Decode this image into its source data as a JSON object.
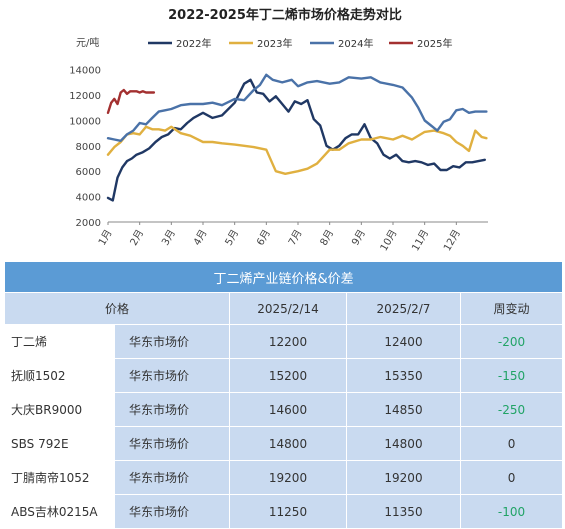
{
  "chart_data": {
    "type": "line",
    "title": "2022-2025年丁二烯市场价格走势对比",
    "unit_label": "元/吨",
    "y_ticks": [
      "14000",
      "12000",
      "10000",
      "8000",
      "6000",
      "4000",
      "2000"
    ],
    "ylim": [
      2000,
      15000
    ],
    "x_ticks": [
      "1月",
      "2月",
      "3月",
      "4月",
      "5月",
      "6月",
      "7月",
      "8月",
      "9月",
      "10月",
      "11月",
      "12月"
    ],
    "xlim": [
      1,
      13
    ],
    "series": [
      {
        "name": "2022年",
        "color": "#203864",
        "x": [
          1.0,
          1.15,
          1.3,
          1.45,
          1.6,
          1.75,
          1.9,
          2.1,
          2.3,
          2.5,
          2.7,
          2.9,
          3.1,
          3.3,
          3.5,
          3.7,
          4.0,
          4.3,
          4.6,
          5.0,
          5.3,
          5.5,
          5.7,
          5.9,
          6.1,
          6.3,
          6.5,
          6.7,
          6.9,
          7.1,
          7.3,
          7.5,
          7.7,
          7.9,
          8.1,
          8.3,
          8.5,
          8.7,
          8.9,
          9.1,
          9.3,
          9.5,
          9.7,
          9.9,
          10.1,
          10.3,
          10.5,
          10.7,
          10.9,
          11.1,
          11.3,
          11.5,
          11.7,
          11.9,
          12.1,
          12.3,
          12.5,
          12.7,
          12.9
        ],
        "values": [
          3900,
          3700,
          5500,
          6300,
          6800,
          7000,
          7300,
          7500,
          7800,
          8300,
          8700,
          8900,
          9400,
          9300,
          9800,
          10200,
          10600,
          10200,
          10400,
          11400,
          12900,
          13200,
          12200,
          12100,
          11500,
          11900,
          11300,
          10700,
          11500,
          11300,
          11600,
          10100,
          9600,
          8000,
          7700,
          8000,
          8600,
          8900,
          8900,
          9700,
          8600,
          8200,
          7300,
          7000,
          7300,
          6800,
          6700,
          6800,
          6700,
          6500,
          6600,
          6100,
          6100,
          6400,
          6300,
          6700,
          6700,
          6800,
          6900
        ]
      },
      {
        "name": "2023年",
        "color": "#e0b040",
        "x": [
          1.0,
          1.2,
          1.4,
          1.6,
          1.8,
          2.0,
          2.2,
          2.4,
          2.6,
          2.8,
          3.0,
          3.3,
          3.6,
          4.0,
          4.3,
          4.6,
          5.0,
          5.3,
          5.6,
          6.0,
          6.3,
          6.6,
          7.0,
          7.3,
          7.6,
          8.0,
          8.3,
          8.6,
          9.0,
          9.3,
          9.6,
          10.0,
          10.3,
          10.6,
          11.0,
          11.3,
          11.6,
          11.8,
          12.0,
          12.2,
          12.4,
          12.6,
          12.8,
          12.95
        ],
        "values": [
          7300,
          7900,
          8300,
          8900,
          9000,
          8900,
          9500,
          9300,
          9300,
          9200,
          9500,
          9000,
          8800,
          8300,
          8300,
          8200,
          8100,
          8000,
          7900,
          7700,
          6000,
          5800,
          6000,
          6200,
          6600,
          7700,
          7700,
          8200,
          8500,
          8500,
          8700,
          8500,
          8800,
          8500,
          9100,
          9200,
          9000,
          8800,
          8300,
          8000,
          7600,
          9200,
          8700,
          8600
        ]
      },
      {
        "name": "2024年",
        "color": "#4a72a8",
        "x": [
          1.0,
          1.2,
          1.4,
          1.6,
          1.8,
          2.0,
          2.2,
          2.4,
          2.6,
          2.8,
          3.0,
          3.3,
          3.6,
          4.0,
          4.3,
          4.6,
          5.0,
          5.3,
          5.6,
          5.8,
          6.0,
          6.2,
          6.5,
          6.8,
          7.0,
          7.3,
          7.6,
          8.0,
          8.3,
          8.6,
          9.0,
          9.3,
          9.6,
          10.0,
          10.3,
          10.6,
          10.8,
          11.0,
          11.2,
          11.4,
          11.6,
          11.8,
          12.0,
          12.2,
          12.4,
          12.6,
          12.8,
          12.95
        ],
        "values": [
          8600,
          8500,
          8400,
          8900,
          9200,
          9800,
          9700,
          10200,
          10700,
          10800,
          10900,
          11200,
          11300,
          11300,
          11400,
          11200,
          11700,
          11600,
          12400,
          12800,
          13600,
          13200,
          13000,
          13200,
          12700,
          13000,
          13100,
          12900,
          13000,
          13400,
          13300,
          13400,
          13000,
          12800,
          12600,
          11800,
          11000,
          10000,
          9600,
          9200,
          9900,
          10100,
          10800,
          10900,
          10600,
          10700,
          10700,
          10700
        ]
      },
      {
        "name": "2025年",
        "color": "#a33030",
        "x": [
          1.0,
          1.1,
          1.2,
          1.3,
          1.4,
          1.5,
          1.6,
          1.7,
          1.8,
          1.9,
          2.0,
          2.1,
          2.2,
          2.3,
          2.45
        ],
        "values": [
          10600,
          11400,
          11700,
          11300,
          12200,
          12400,
          12100,
          12300,
          12300,
          12300,
          12200,
          12300,
          12200,
          12200,
          12200
        ]
      }
    ],
    "grid": false,
    "legend_position": "top"
  },
  "table": {
    "title": "丁二烯产业链价格&价差",
    "headers": {
      "price": "价格",
      "date1": "2025/2/14",
      "date2": "2025/2/7",
      "change": "周变动"
    },
    "rows": [
      {
        "name": "丁二烯",
        "market": "华东市场价",
        "v1": "12200",
        "v2": "12400",
        "change": "-200",
        "change_color": "#21a366"
      },
      {
        "name": "抚顺1502",
        "market": "华东市场价",
        "v1": "15200",
        "v2": "15350",
        "change": "-150",
        "change_color": "#21a366"
      },
      {
        "name": "大庆BR9000",
        "market": "华东市场价",
        "v1": "14600",
        "v2": "14850",
        "change": "-250",
        "change_color": "#21a366"
      },
      {
        "name": "SBS 792E",
        "market": "华东市场价",
        "v1": "14800",
        "v2": "14800",
        "change": "0",
        "change_color": "#333333"
      },
      {
        "name": "丁腈南帝1052",
        "market": "华东市场价",
        "v1": "19200",
        "v2": "19200",
        "change": "0",
        "change_color": "#333333"
      },
      {
        "name": "ABS吉林0215A",
        "market": "华东市场价",
        "v1": "11250",
        "v2": "11350",
        "change": "-100",
        "change_color": "#21a366"
      }
    ]
  }
}
